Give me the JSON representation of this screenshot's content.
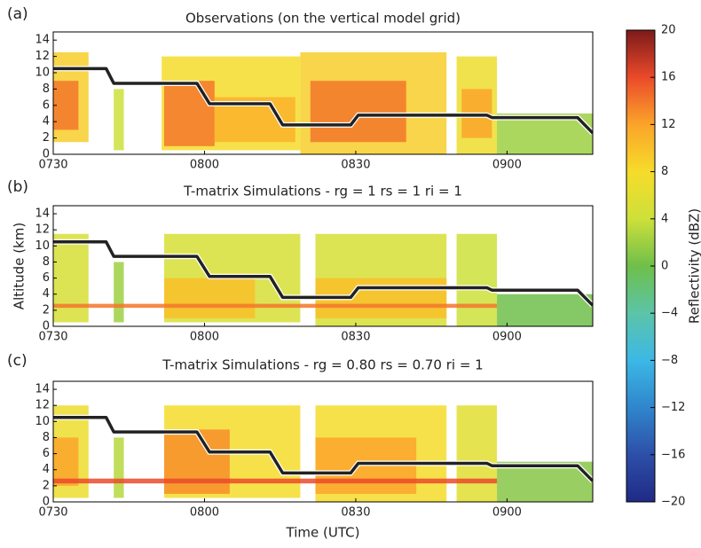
{
  "figure": {
    "xlabel": "Time (UTC)",
    "ylabel": "Altitude (km)",
    "colorbar": {
      "label": "Reflectivity (dBZ)",
      "lim": [
        -20,
        20
      ],
      "ticks": [
        {
          "value": -20,
          "label": "−20"
        },
        {
          "value": -16,
          "label": "−16"
        },
        {
          "value": -12,
          "label": "−12"
        },
        {
          "value": -8,
          "label": "−8"
        },
        {
          "value": -4,
          "label": "−4"
        },
        0,
        4,
        8,
        12,
        16,
        20
      ],
      "colors": [
        "#1f2a86",
        "#2d4fa8",
        "#2f86cc",
        "#3cb8e6",
        "#5cc4a8",
        "#6fbf4a",
        "#cde03a",
        "#f6dc2a",
        "#fba42a",
        "#ea4a2a",
        "#7c1a1a"
      ]
    }
  },
  "chart_data": [
    {
      "type": "heatmap",
      "panel": "(a)",
      "title": "Observations (on  the vertical model grid)",
      "xlim": [
        0,
        107
      ],
      "ylim": [
        0,
        15
      ],
      "xticks": [
        {
          "value": 0,
          "label": "0730"
        },
        {
          "value": 30,
          "label": "0800"
        },
        {
          "value": 60,
          "label": "0830"
        },
        {
          "value": 90,
          "label": "0900"
        }
      ],
      "yticks": [
        0,
        2,
        4,
        6,
        8,
        10,
        12,
        14
      ],
      "blocks": {
        "x": [
          [
            0,
            7
          ],
          [
            0,
            5
          ],
          [
            12,
            14
          ],
          [
            21.5,
            49
          ],
          [
            22,
            32
          ],
          [
            32,
            48
          ],
          [
            49,
            78
          ],
          [
            51,
            70
          ],
          [
            80,
            88
          ],
          [
            81,
            87
          ],
          [
            88,
            107
          ]
        ],
        "y": [
          [
            1.5,
            12.5
          ],
          [
            3,
            9
          ],
          [
            0.5,
            8
          ],
          [
            0.5,
            12
          ],
          [
            1,
            9
          ],
          [
            1.5,
            7
          ],
          [
            0,
            12.5
          ],
          [
            1.5,
            9
          ],
          [
            0,
            12
          ],
          [
            2,
            8
          ],
          [
            0,
            5
          ]
        ],
        "z": [
          9,
          14,
          4,
          8,
          14,
          11,
          9,
          14,
          7,
          12,
          2
        ]
      },
      "track": {
        "color": "#222222",
        "x": [
          0,
          10.5,
          12,
          28.5,
          31,
          43,
          45.5,
          59,
          60.5,
          86,
          87,
          104,
          107
        ],
        "y": [
          10.5,
          10.5,
          8.7,
          8.7,
          6.2,
          6.2,
          3.6,
          3.6,
          4.8,
          4.8,
          4.5,
          4.5,
          2.6
        ]
      }
    },
    {
      "type": "heatmap",
      "panel": "(b)",
      "title": "T-matrix Simulations - rg = 1 rs = 1 ri = 1",
      "xlim": [
        0,
        107
      ],
      "ylim": [
        0,
        15
      ],
      "xticks": [
        {
          "value": 0,
          "label": "0730"
        },
        {
          "value": 30,
          "label": "0800"
        },
        {
          "value": 60,
          "label": "0830"
        },
        {
          "value": 90,
          "label": "0900"
        }
      ],
      "yticks": [
        0,
        2,
        4,
        6,
        8,
        10,
        12,
        14
      ],
      "blocks": {
        "x": [
          [
            0,
            7
          ],
          [
            12,
            14
          ],
          [
            22,
            49
          ],
          [
            22,
            40
          ],
          [
            52,
            78
          ],
          [
            52,
            78
          ],
          [
            80,
            88
          ],
          [
            88,
            107
          ],
          [
            0,
            88
          ]
        ],
        "y": [
          [
            0.5,
            11.5
          ],
          [
            0.5,
            8
          ],
          [
            0.5,
            11.5
          ],
          [
            1,
            6
          ],
          [
            0,
            11.5
          ],
          [
            1,
            6
          ],
          [
            0,
            11.5
          ],
          [
            0,
            4
          ],
          [
            2.3,
            2.8
          ]
        ],
        "z": [
          5,
          2,
          5,
          10,
          5,
          10,
          4,
          0,
          14
        ]
      },
      "track": {
        "color": "#222222",
        "x": [
          0,
          10.5,
          12,
          28.5,
          31,
          43,
          45.5,
          59,
          60.5,
          86,
          87,
          104,
          107
        ],
        "y": [
          10.5,
          10.5,
          8.7,
          8.7,
          6.2,
          6.2,
          3.6,
          3.6,
          4.8,
          4.8,
          4.5,
          4.5,
          2.6
        ]
      }
    },
    {
      "type": "heatmap",
      "panel": "(c)",
      "title": "T-matrix Simulations - rg = 0.80 rs = 0.70 ri = 1",
      "xlim": [
        0,
        107
      ],
      "ylim": [
        0,
        15
      ],
      "xticks": [
        {
          "value": 0,
          "label": "0730"
        },
        {
          "value": 30,
          "label": "0800"
        },
        {
          "value": 60,
          "label": "0830"
        },
        {
          "value": 90,
          "label": "0900"
        }
      ],
      "yticks": [
        0,
        2,
        4,
        6,
        8,
        10,
        12,
        14
      ],
      "blocks": {
        "x": [
          [
            0,
            7
          ],
          [
            0,
            5
          ],
          [
            12,
            14
          ],
          [
            22,
            49
          ],
          [
            22,
            35
          ],
          [
            52,
            78
          ],
          [
            52,
            72
          ],
          [
            80,
            88
          ],
          [
            88,
            107
          ],
          [
            0,
            88
          ]
        ],
        "y": [
          [
            0.5,
            12
          ],
          [
            2,
            8
          ],
          [
            0.5,
            8
          ],
          [
            0.5,
            12
          ],
          [
            1,
            9
          ],
          [
            0,
            12
          ],
          [
            1,
            8
          ],
          [
            0,
            12
          ],
          [
            0,
            5
          ],
          [
            2.3,
            2.9
          ]
        ],
        "z": [
          7,
          12,
          3,
          8,
          13,
          8,
          12,
          6,
          1,
          16
        ]
      },
      "track": {
        "color": "#222222",
        "x": [
          0,
          10.5,
          12,
          28.5,
          31,
          43,
          45.5,
          59,
          60.5,
          86,
          87,
          104,
          107
        ],
        "y": [
          10.5,
          10.5,
          8.7,
          8.7,
          6.2,
          6.2,
          3.6,
          3.6,
          4.8,
          4.8,
          4.5,
          4.5,
          2.6
        ]
      }
    }
  ]
}
